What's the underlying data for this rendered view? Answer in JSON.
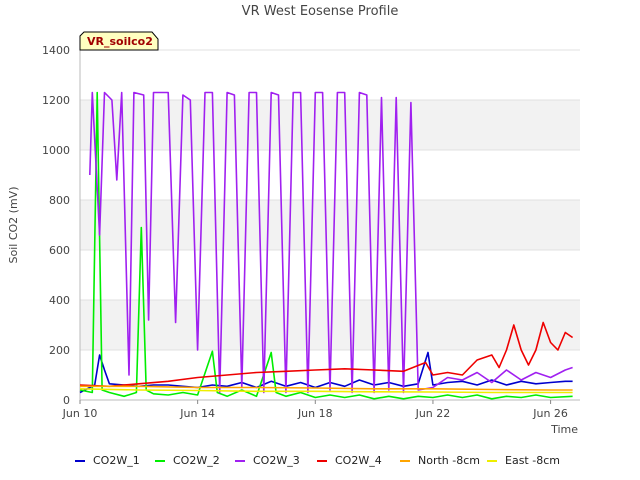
{
  "chart_data": {
    "type": "line",
    "title": "VR West Eosense Profile",
    "site_label": "VR_soilco2",
    "xlabel": "Time",
    "ylabel": "Soil CO2 (mV)",
    "xlim": [
      "2024-06-10",
      "2024-06-27"
    ],
    "ylim": [
      0,
      1400
    ],
    "x_ticks": [
      {
        "date": "2024-06-10",
        "label": "Jun 10"
      },
      {
        "date": "2024-06-14",
        "label": "Jun 14"
      },
      {
        "date": "2024-06-18",
        "label": "Jun 18"
      },
      {
        "date": "2024-06-22",
        "label": "Jun 22"
      },
      {
        "date": "2024-06-26",
        "label": "Jun 26"
      }
    ],
    "y_ticks": [
      0,
      200,
      400,
      600,
      800,
      1000,
      1200,
      1400
    ],
    "grid": "alternating horizontal bands",
    "legend_position": "bottom",
    "series": [
      {
        "name": "CO2W_1",
        "color": "#0000cc",
        "points": [
          [
            "2024-06-10 00:00",
            30
          ],
          [
            "2024-06-10 12:00",
            60
          ],
          [
            "2024-06-10 16:00",
            180
          ],
          [
            "2024-06-10 20:00",
            120
          ],
          [
            "2024-06-11 00:00",
            65
          ],
          [
            "2024-06-11 12:00",
            60
          ],
          [
            "2024-06-12 00:00",
            55
          ],
          [
            "2024-06-12 12:00",
            60
          ],
          [
            "2024-06-13 00:00",
            60
          ],
          [
            "2024-06-13 12:00",
            55
          ],
          [
            "2024-06-14 00:00",
            50
          ],
          [
            "2024-06-14 12:00",
            60
          ],
          [
            "2024-06-15 00:00",
            55
          ],
          [
            "2024-06-15 12:00",
            70
          ],
          [
            "2024-06-16 00:00",
            50
          ],
          [
            "2024-06-16 12:00",
            75
          ],
          [
            "2024-06-17 00:00",
            55
          ],
          [
            "2024-06-17 12:00",
            70
          ],
          [
            "2024-06-18 00:00",
            50
          ],
          [
            "2024-06-18 12:00",
            70
          ],
          [
            "2024-06-19 00:00",
            55
          ],
          [
            "2024-06-19 12:00",
            80
          ],
          [
            "2024-06-20 00:00",
            60
          ],
          [
            "2024-06-20 12:00",
            70
          ],
          [
            "2024-06-21 00:00",
            55
          ],
          [
            "2024-06-21 12:00",
            65
          ],
          [
            "2024-06-21 20:00",
            190
          ],
          [
            "2024-06-22 00:00",
            60
          ],
          [
            "2024-06-22 12:00",
            70
          ],
          [
            "2024-06-23 00:00",
            75
          ],
          [
            "2024-06-23 12:00",
            60
          ],
          [
            "2024-06-24 00:00",
            80
          ],
          [
            "2024-06-24 12:00",
            60
          ],
          [
            "2024-06-25 00:00",
            75
          ],
          [
            "2024-06-25 12:00",
            65
          ],
          [
            "2024-06-26 00:00",
            70
          ],
          [
            "2024-06-26 12:00",
            75
          ],
          [
            "2024-06-26 18:00",
            75
          ]
        ]
      },
      {
        "name": "CO2W_2",
        "color": "#00ee00",
        "points": [
          [
            "2024-06-10 00:00",
            40
          ],
          [
            "2024-06-10 10:00",
            30
          ],
          [
            "2024-06-10 14:00",
            1230
          ],
          [
            "2024-06-10 18:00",
            40
          ],
          [
            "2024-06-11 00:00",
            30
          ],
          [
            "2024-06-11 12:00",
            15
          ],
          [
            "2024-06-11 22:00",
            30
          ],
          [
            "2024-06-12 02:00",
            690
          ],
          [
            "2024-06-12 06:00",
            40
          ],
          [
            "2024-06-12 12:00",
            25
          ],
          [
            "2024-06-13 00:00",
            20
          ],
          [
            "2024-06-13 12:00",
            30
          ],
          [
            "2024-06-14 00:00",
            20
          ],
          [
            "2024-06-14 12:00",
            195
          ],
          [
            "2024-06-14 16:00",
            30
          ],
          [
            "2024-06-15 00:00",
            15
          ],
          [
            "2024-06-15 12:00",
            40
          ],
          [
            "2024-06-16 00:00",
            15
          ],
          [
            "2024-06-16 12:00",
            190
          ],
          [
            "2024-06-16 16:00",
            30
          ],
          [
            "2024-06-17 00:00",
            15
          ],
          [
            "2024-06-17 12:00",
            30
          ],
          [
            "2024-06-18 00:00",
            10
          ],
          [
            "2024-06-18 12:00",
            20
          ],
          [
            "2024-06-19 00:00",
            10
          ],
          [
            "2024-06-19 12:00",
            20
          ],
          [
            "2024-06-20 00:00",
            5
          ],
          [
            "2024-06-20 12:00",
            15
          ],
          [
            "2024-06-21 00:00",
            5
          ],
          [
            "2024-06-21 12:00",
            15
          ],
          [
            "2024-06-22 00:00",
            10
          ],
          [
            "2024-06-22 12:00",
            20
          ],
          [
            "2024-06-23 00:00",
            10
          ],
          [
            "2024-06-23 12:00",
            20
          ],
          [
            "2024-06-24 00:00",
            5
          ],
          [
            "2024-06-24 12:00",
            15
          ],
          [
            "2024-06-25 00:00",
            10
          ],
          [
            "2024-06-25 12:00",
            20
          ],
          [
            "2024-06-26 00:00",
            10
          ],
          [
            "2024-06-26 18:00",
            15
          ]
        ]
      },
      {
        "name": "CO2W_3",
        "color": "#a020f0",
        "points": [
          [
            "2024-06-10 08:00",
            900
          ],
          [
            "2024-06-10 10:00",
            1230
          ],
          [
            "2024-06-10 16:00",
            660
          ],
          [
            "2024-06-10 20:00",
            1230
          ],
          [
            "2024-06-11 02:00",
            1200
          ],
          [
            "2024-06-11 06:00",
            880
          ],
          [
            "2024-06-11 10:00",
            1230
          ],
          [
            "2024-06-11 16:00",
            100
          ],
          [
            "2024-06-11 20:00",
            1230
          ],
          [
            "2024-06-12 04:00",
            1220
          ],
          [
            "2024-06-12 08:00",
            320
          ],
          [
            "2024-06-12 12:00",
            1230
          ],
          [
            "2024-06-13 00:00",
            1230
          ],
          [
            "2024-06-13 06:00",
            310
          ],
          [
            "2024-06-13 12:00",
            1220
          ],
          [
            "2024-06-13 18:00",
            1200
          ],
          [
            "2024-06-14 00:00",
            200
          ],
          [
            "2024-06-14 06:00",
            1230
          ],
          [
            "2024-06-14 12:00",
            1230
          ],
          [
            "2024-06-14 18:00",
            30
          ],
          [
            "2024-06-15 00:00",
            1230
          ],
          [
            "2024-06-15 06:00",
            1220
          ],
          [
            "2024-06-15 12:00",
            50
          ],
          [
            "2024-06-15 18:00",
            1230
          ],
          [
            "2024-06-16 00:00",
            1230
          ],
          [
            "2024-06-16 06:00",
            30
          ],
          [
            "2024-06-16 12:00",
            1230
          ],
          [
            "2024-06-16 18:00",
            1220
          ],
          [
            "2024-06-17 00:00",
            30
          ],
          [
            "2024-06-17 06:00",
            1230
          ],
          [
            "2024-06-17 12:00",
            1230
          ],
          [
            "2024-06-17 18:00",
            30
          ],
          [
            "2024-06-18 00:00",
            1230
          ],
          [
            "2024-06-18 06:00",
            1230
          ],
          [
            "2024-06-18 12:00",
            40
          ],
          [
            "2024-06-18 18:00",
            1230
          ],
          [
            "2024-06-19 00:00",
            1230
          ],
          [
            "2024-06-19 06:00",
            30
          ],
          [
            "2024-06-19 12:00",
            1230
          ],
          [
            "2024-06-19 18:00",
            1220
          ],
          [
            "2024-06-20 00:00",
            30
          ],
          [
            "2024-06-20 06:00",
            1210
          ],
          [
            "2024-06-20 12:00",
            40
          ],
          [
            "2024-06-20 18:00",
            1210
          ],
          [
            "2024-06-21 00:00",
            30
          ],
          [
            "2024-06-21 06:00",
            1190
          ],
          [
            "2024-06-21 12:00",
            40
          ],
          [
            "2024-06-22 00:00",
            50
          ],
          [
            "2024-06-22 12:00",
            90
          ],
          [
            "2024-06-23 00:00",
            80
          ],
          [
            "2024-06-23 12:00",
            110
          ],
          [
            "2024-06-24 00:00",
            70
          ],
          [
            "2024-06-24 12:00",
            120
          ],
          [
            "2024-06-25 00:00",
            80
          ],
          [
            "2024-06-25 12:00",
            110
          ],
          [
            "2024-06-26 00:00",
            90
          ],
          [
            "2024-06-26 12:00",
            120
          ],
          [
            "2024-06-26 18:00",
            130
          ]
        ]
      },
      {
        "name": "CO2W_4",
        "color": "#ee0000",
        "points": [
          [
            "2024-06-10 00:00",
            60
          ],
          [
            "2024-06-11 00:00",
            55
          ],
          [
            "2024-06-12 00:00",
            65
          ],
          [
            "2024-06-13 00:00",
            75
          ],
          [
            "2024-06-14 00:00",
            90
          ],
          [
            "2024-06-15 00:00",
            100
          ],
          [
            "2024-06-16 00:00",
            110
          ],
          [
            "2024-06-17 00:00",
            115
          ],
          [
            "2024-06-18 00:00",
            120
          ],
          [
            "2024-06-19 00:00",
            125
          ],
          [
            "2024-06-20 00:00",
            120
          ],
          [
            "2024-06-21 00:00",
            115
          ],
          [
            "2024-06-21 18:00",
            150
          ],
          [
            "2024-06-22 00:00",
            100
          ],
          [
            "2024-06-22 12:00",
            110
          ],
          [
            "2024-06-23 00:00",
            100
          ],
          [
            "2024-06-23 12:00",
            160
          ],
          [
            "2024-06-24 00:00",
            180
          ],
          [
            "2024-06-24 06:00",
            130
          ],
          [
            "2024-06-24 12:00",
            200
          ],
          [
            "2024-06-24 18:00",
            300
          ],
          [
            "2024-06-25 00:00",
            200
          ],
          [
            "2024-06-25 06:00",
            140
          ],
          [
            "2024-06-25 12:00",
            200
          ],
          [
            "2024-06-25 18:00",
            310
          ],
          [
            "2024-06-26 00:00",
            230
          ],
          [
            "2024-06-26 06:00",
            200
          ],
          [
            "2024-06-26 12:00",
            270
          ],
          [
            "2024-06-26 18:00",
            250
          ]
        ]
      },
      {
        "name": "North -8cm",
        "color": "#ffa500",
        "points": [
          [
            "2024-06-10 00:00",
            55
          ],
          [
            "2024-06-12 00:00",
            55
          ],
          [
            "2024-06-14 00:00",
            50
          ],
          [
            "2024-06-16 00:00",
            50
          ],
          [
            "2024-06-18 00:00",
            48
          ],
          [
            "2024-06-20 00:00",
            45
          ],
          [
            "2024-06-22 00:00",
            45
          ],
          [
            "2024-06-24 00:00",
            42
          ],
          [
            "2024-06-26 00:00",
            40
          ],
          [
            "2024-06-26 18:00",
            40
          ]
        ]
      },
      {
        "name": "East -8cm",
        "color": "#eeee00",
        "points": [
          [
            "2024-06-10 00:00",
            45
          ],
          [
            "2024-06-12 00:00",
            40
          ],
          [
            "2024-06-14 00:00",
            38
          ],
          [
            "2024-06-16 00:00",
            35
          ],
          [
            "2024-06-18 00:00",
            35
          ],
          [
            "2024-06-20 00:00",
            33
          ],
          [
            "2024-06-22 00:00",
            32
          ],
          [
            "2024-06-24 00:00",
            30
          ],
          [
            "2024-06-26 00:00",
            30
          ],
          [
            "2024-06-26 18:00",
            30
          ]
        ]
      }
    ]
  }
}
